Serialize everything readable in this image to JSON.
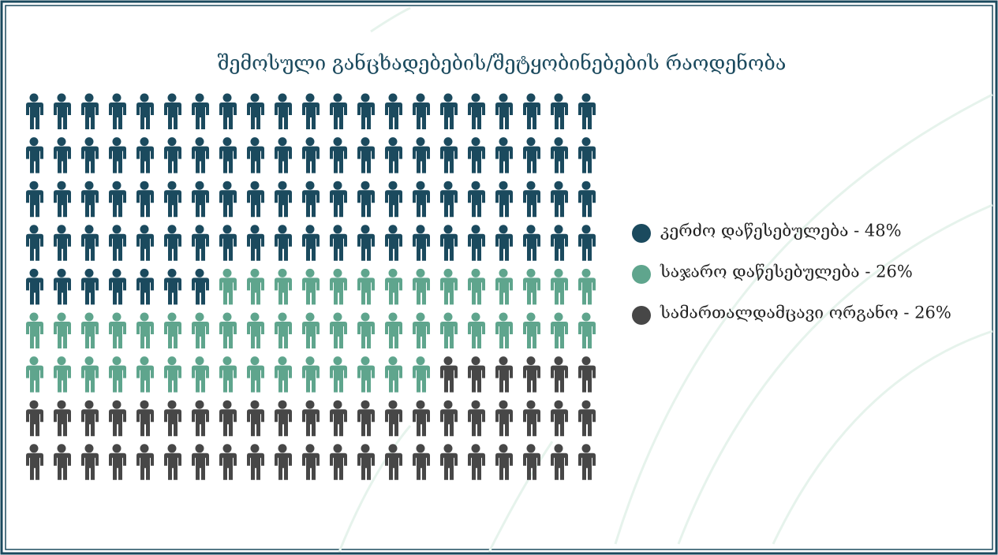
{
  "chart_data": {
    "type": "pictogram",
    "title": "შემოსული განცხადებების/შეტყობინებების რაოდენობა",
    "series": [
      {
        "name": "კერძო დაწესებულება - 48%",
        "color": "#1b4a5e",
        "values": [
          91
        ]
      },
      {
        "name": "საჯარო დაწესებულება - 26%",
        "color": "#5fa58d",
        "values": [
          50
        ]
      },
      {
        "name": "სამართალდამცავი ორგანო - 26%",
        "color": "#474747",
        "values": [
          48
        ]
      }
    ]
  }
}
